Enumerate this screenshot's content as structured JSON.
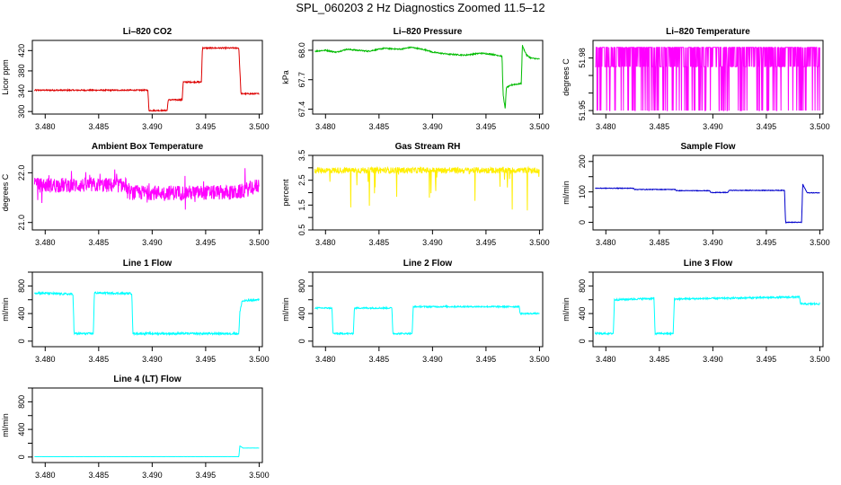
{
  "figure_title": "SPL_060203  2 Hz Diagnostics Zoomed 11.5–12",
  "chart_data": [
    {
      "type": "line",
      "title": "Li–820 CO2",
      "ylabel": "Licor ppm",
      "color": "#dd0000",
      "ylim": [
        295,
        440
      ],
      "yticks": [
        300,
        340,
        380,
        420
      ],
      "xlim": [
        3.4788,
        3.5003
      ],
      "xticks": [
        3.48,
        3.485,
        3.49,
        3.495,
        3.5
      ],
      "noise": 1.2,
      "x": [
        3.479,
        3.4896,
        3.4897,
        3.4914,
        3.4915,
        3.4928,
        3.4929,
        3.4946,
        3.4947,
        3.4981,
        3.4983,
        3.5
      ],
      "y": [
        342,
        342,
        302,
        302,
        323,
        323,
        358,
        358,
        425,
        425,
        335,
        335
      ]
    },
    {
      "type": "line",
      "title": "Li–820 Pressure",
      "ylabel": "kPa",
      "color": "#00bb00",
      "ylim": [
        67.35,
        68.1
      ],
      "yticks": [
        67.4,
        67.7,
        68.0
      ],
      "ytick_labels": [
        "67.4",
        "67.7",
        "68.0"
      ],
      "xlim": [
        3.4788,
        3.5003
      ],
      "xticks": [
        3.48,
        3.485,
        3.49,
        3.495,
        3.5
      ],
      "noise": 0.006,
      "x": [
        3.479,
        3.48,
        3.481,
        3.482,
        3.483,
        3.484,
        3.4855,
        3.487,
        3.488,
        3.4895,
        3.49,
        3.4915,
        3.493,
        3.4945,
        3.4955,
        3.4965,
        3.4966,
        3.4968,
        3.4969,
        3.4975,
        3.4983,
        3.4984,
        3.4985,
        3.4988,
        3.4992,
        3.5
      ],
      "y": [
        67.99,
        68.0,
        67.98,
        68.01,
        68.0,
        67.99,
        68.02,
        68.01,
        68.03,
        68.0,
        67.98,
        67.96,
        67.95,
        67.97,
        67.96,
        67.94,
        67.55,
        67.4,
        67.62,
        67.65,
        67.66,
        68.05,
        68.02,
        67.95,
        67.92,
        67.91
      ]
    },
    {
      "type": "line",
      "title": "Li–820 Temperature",
      "ylabel": "degrees C",
      "color": "#ff00ff",
      "ylim": [
        51.948,
        51.99
      ],
      "yticks": [
        51.95,
        51.96,
        51.97,
        51.98
      ],
      "ytick_labels": [
        "51.95",
        "",
        "",
        "51.98"
      ],
      "xlim": [
        3.4788,
        3.5003
      ],
      "xticks": [
        3.48,
        3.485,
        3.49,
        3.495,
        3.5
      ],
      "pattern": "toggle",
      "levels": [
        51.986,
        51.975,
        51.95
      ],
      "x": [
        3.479,
        3.5
      ],
      "y": [
        51.986,
        51.986
      ]
    },
    {
      "type": "line",
      "title": "Ambient Box Temperature",
      "ylabel": "degrees C",
      "color": "#ff00ff",
      "ylim": [
        20.85,
        22.35
      ],
      "yticks": [
        21.0,
        22.0
      ],
      "ytick_labels": [
        "21.0",
        "22.0"
      ],
      "xlim": [
        3.4788,
        3.5003
      ],
      "xticks": [
        3.48,
        3.485,
        3.49,
        3.495,
        3.5
      ],
      "noise": 0.15,
      "spikes": 0.3,
      "x": [
        3.479,
        3.4876,
        3.4877,
        3.498,
        3.5
      ],
      "y": [
        21.75,
        21.75,
        21.6,
        21.6,
        21.75
      ]
    },
    {
      "type": "line",
      "title": "Gas Stream RH",
      "ylabel": "percent",
      "color": "#ffee00",
      "ylim": [
        0.5,
        3.5
      ],
      "yticks": [
        0.5,
        1.5,
        2.5,
        3.5
      ],
      "extra_ticks": [
        1.0,
        2.0,
        3.0
      ],
      "xlim": [
        3.4788,
        3.5003
      ],
      "xticks": [
        3.48,
        3.485,
        3.49,
        3.495,
        3.5
      ],
      "noise": 0.12,
      "dips": 1.6,
      "x": [
        3.479,
        3.5
      ],
      "y": [
        2.9,
        2.9
      ]
    },
    {
      "type": "line",
      "title": "Sample Flow",
      "ylabel": "ml/min",
      "color": "#0000cc",
      "ylim": [
        -25,
        220
      ],
      "yticks": [
        0,
        50,
        100,
        150,
        200
      ],
      "ytick_labels": [
        "0",
        "",
        "100",
        "",
        "200"
      ],
      "xlim": [
        3.4788,
        3.5003
      ],
      "xticks": [
        3.48,
        3.485,
        3.49,
        3.495,
        3.5
      ],
      "noise": 1.0,
      "x": [
        3.479,
        3.4826,
        3.4827,
        3.4865,
        3.4866,
        3.4897,
        3.4898,
        3.4914,
        3.4915,
        3.4967,
        3.4968,
        3.4983,
        3.4984,
        3.4988,
        3.4989,
        3.5
      ],
      "y": [
        112,
        112,
        108,
        108,
        104,
        104,
        98,
        98,
        105,
        105,
        0,
        0,
        125,
        98,
        97,
        97
      ]
    },
    {
      "type": "line",
      "title": "Line 1 Flow",
      "ylabel": "ml/min",
      "color": "#00ffff",
      "ylim": [
        -80,
        1000
      ],
      "yticks": [
        0,
        400,
        800
      ],
      "extra_ticks": [
        200,
        600,
        1000
      ],
      "xlim": [
        3.4788,
        3.5003
      ],
      "xticks": [
        3.48,
        3.485,
        3.49,
        3.495,
        3.5
      ],
      "noise": 14,
      "x": [
        3.479,
        3.4826,
        3.4827,
        3.4845,
        3.4846,
        3.4881,
        3.4882,
        3.4981,
        3.4982,
        3.4984,
        3.5
      ],
      "y": [
        700,
        680,
        110,
        110,
        700,
        690,
        110,
        110,
        420,
        580,
        600
      ]
    },
    {
      "type": "line",
      "title": "Line 2 Flow",
      "ylabel": "ml/min",
      "color": "#00ffff",
      "ylim": [
        -80,
        1000
      ],
      "yticks": [
        0,
        400,
        800
      ],
      "extra_ticks": [
        200,
        600,
        1000
      ],
      "xlim": [
        3.4788,
        3.5003
      ],
      "xticks": [
        3.48,
        3.485,
        3.49,
        3.495,
        3.5
      ],
      "noise": 10,
      "x": [
        3.479,
        3.4806,
        3.4807,
        3.4826,
        3.4827,
        3.4862,
        3.4863,
        3.4881,
        3.4882,
        3.4981,
        3.4982,
        3.5
      ],
      "y": [
        480,
        480,
        110,
        110,
        480,
        480,
        110,
        110,
        500,
        500,
        400,
        400
      ]
    },
    {
      "type": "line",
      "title": "Line 3 Flow",
      "ylabel": "ml/min",
      "color": "#00ffff",
      "ylim": [
        -80,
        1000
      ],
      "yticks": [
        0,
        400,
        800
      ],
      "extra_ticks": [
        200,
        600,
        1000
      ],
      "xlim": [
        3.4788,
        3.5003
      ],
      "xticks": [
        3.48,
        3.485,
        3.49,
        3.495,
        3.5
      ],
      "noise": 12,
      "x": [
        3.479,
        3.4807,
        3.4808,
        3.4845,
        3.4846,
        3.4863,
        3.4864,
        3.4981,
        3.4982,
        3.5
      ],
      "y": [
        110,
        110,
        600,
        620,
        110,
        110,
        610,
        640,
        540,
        540
      ]
    },
    {
      "type": "line",
      "title": "Line 4 (LT) Flow",
      "ylabel": "ml/min",
      "color": "#00ffff",
      "ylim": [
        -80,
        1000
      ],
      "yticks": [
        0,
        400,
        800
      ],
      "extra_ticks": [
        200,
        600,
        1000
      ],
      "xlim": [
        3.4788,
        3.5003
      ],
      "xticks": [
        3.48,
        3.485,
        3.49,
        3.495,
        3.5
      ],
      "noise": 1,
      "x": [
        3.479,
        3.4981,
        3.4982,
        3.4985,
        3.5
      ],
      "y": [
        5,
        5,
        160,
        130,
        130
      ]
    }
  ]
}
